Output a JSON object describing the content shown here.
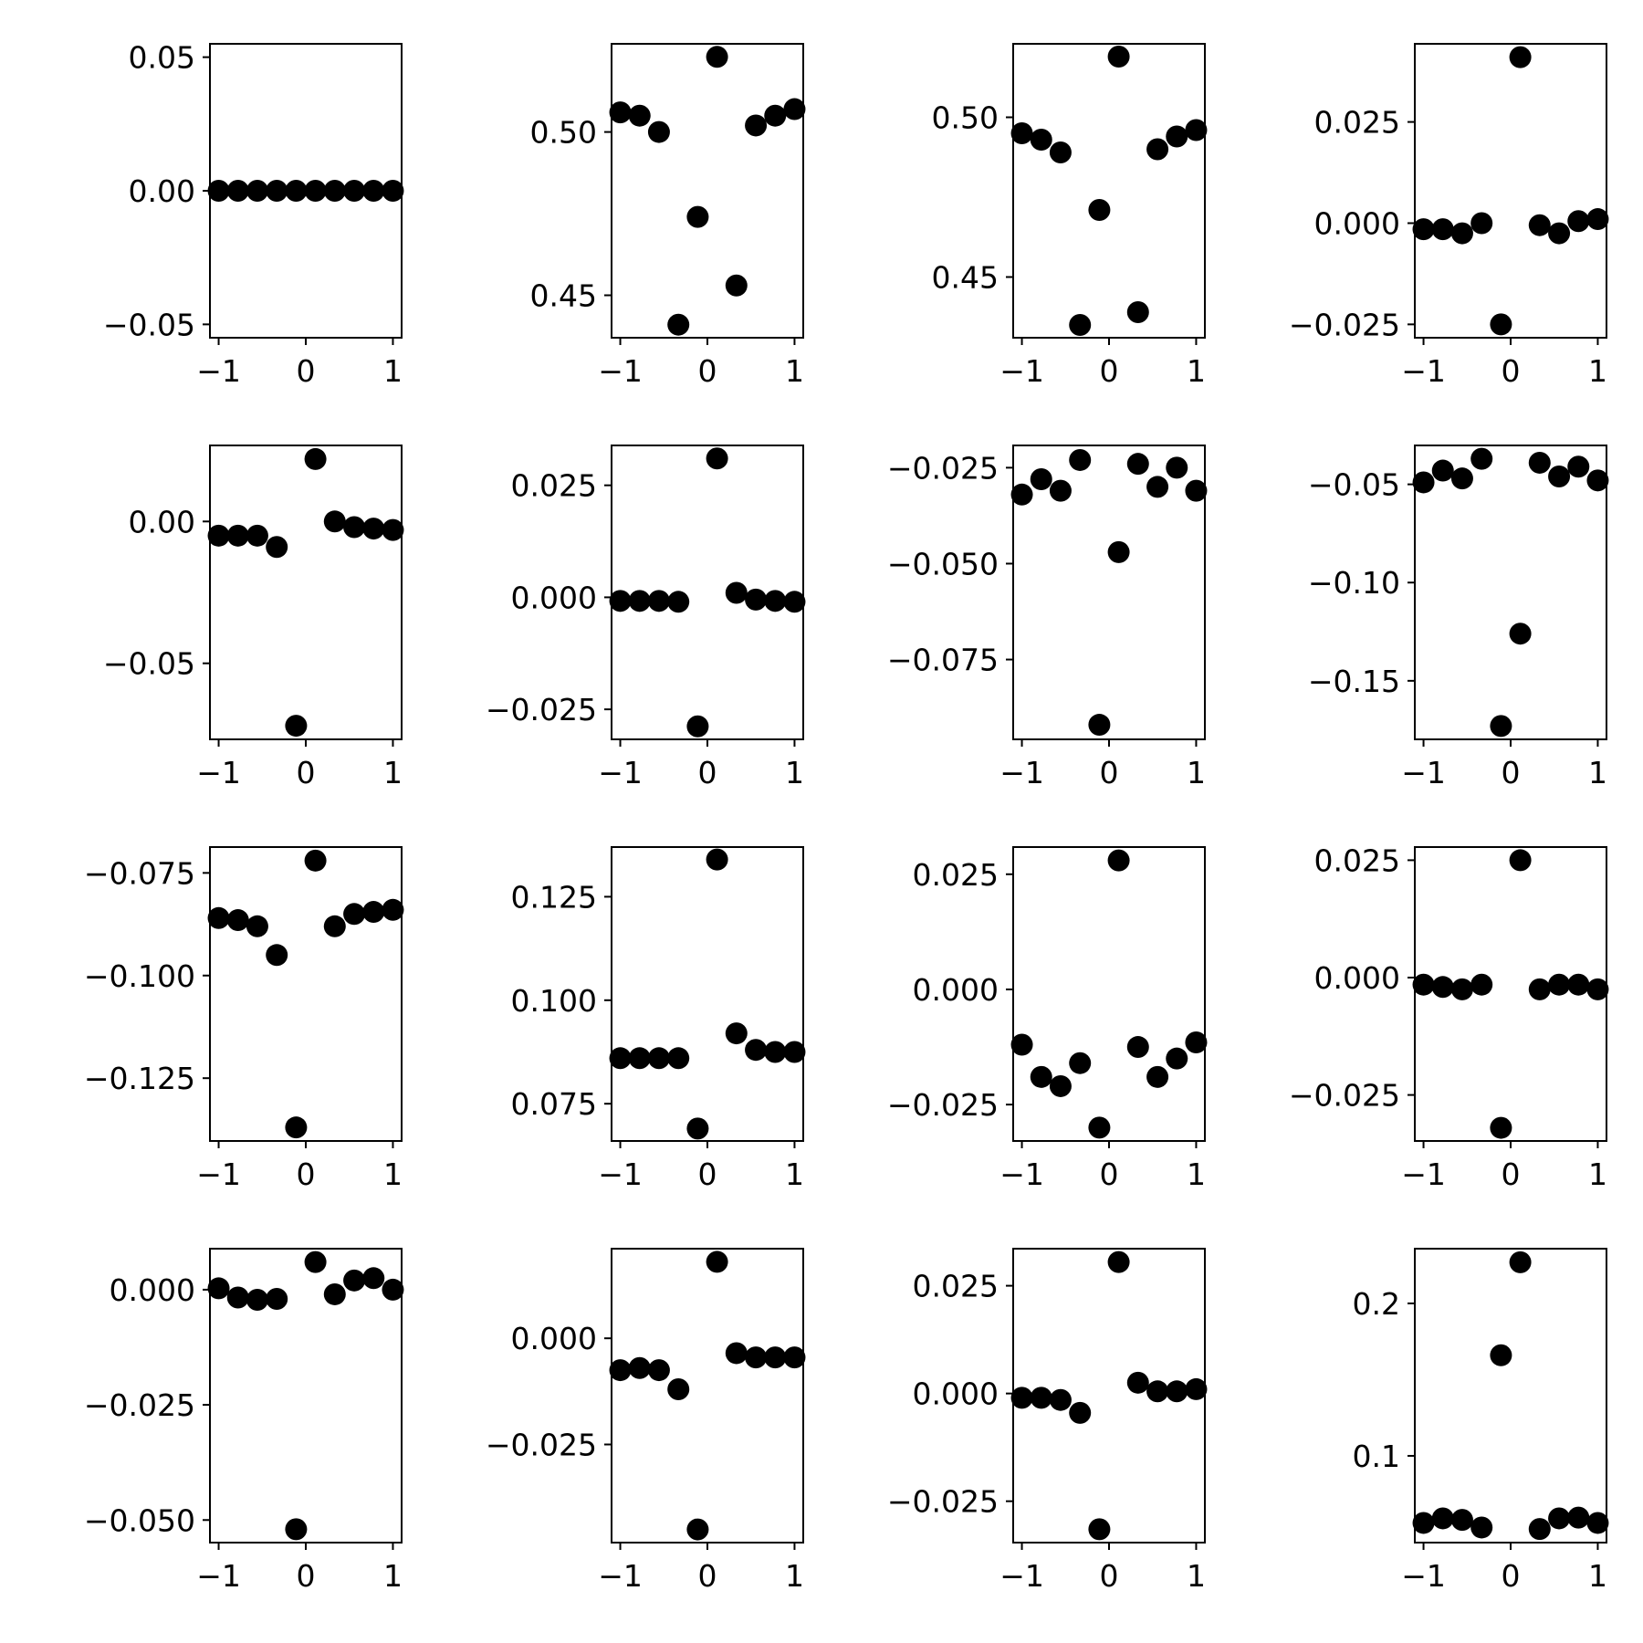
{
  "figure": {
    "background": "#ffffff",
    "grid_rows": 4,
    "grid_cols": 4,
    "marker_color": "#000000",
    "grid": false
  },
  "chart_data": [
    {
      "type": "scatter",
      "x": [
        -1.0,
        -0.778,
        -0.556,
        -0.333,
        -0.111,
        0.111,
        0.333,
        0.556,
        0.778,
        1.0
      ],
      "y": [
        0,
        0,
        0,
        0,
        0,
        0,
        0,
        0,
        0,
        0
      ],
      "xlim": [
        -1.1,
        1.1
      ],
      "ylim": [
        -0.055,
        0.055
      ],
      "xticks": [
        {
          "v": -1,
          "label": "−1"
        },
        {
          "v": 0,
          "label": "0"
        },
        {
          "v": 1,
          "label": "1"
        }
      ],
      "yticks": [
        {
          "v": 0.05,
          "label": "0.05"
        },
        {
          "v": 0,
          "label": "0.00"
        },
        {
          "v": -0.05,
          "label": "−0.05"
        }
      ]
    },
    {
      "type": "scatter",
      "x": [
        -1.0,
        -0.778,
        -0.556,
        -0.333,
        -0.111,
        0.111,
        0.333,
        0.556,
        0.778,
        1.0
      ],
      "y": [
        0.506,
        0.505,
        0.5,
        0.441,
        0.474,
        0.523,
        0.453,
        0.502,
        0.505,
        0.507
      ],
      "xlim": [
        -1.1,
        1.1
      ],
      "ylim": [
        0.437,
        0.527
      ],
      "xticks": [
        {
          "v": -1,
          "label": "−1"
        },
        {
          "v": 0,
          "label": "0"
        },
        {
          "v": 1,
          "label": "1"
        }
      ],
      "yticks": [
        {
          "v": 0.5,
          "label": "0.50"
        },
        {
          "v": 0.45,
          "label": "0.45"
        }
      ]
    },
    {
      "type": "scatter",
      "x": [
        -1.0,
        -0.778,
        -0.556,
        -0.333,
        -0.111,
        0.111,
        0.333,
        0.556,
        0.778,
        1.0
      ],
      "y": [
        0.495,
        0.493,
        0.489,
        0.435,
        0.471,
        0.519,
        0.439,
        0.49,
        0.494,
        0.496
      ],
      "xlim": [
        -1.1,
        1.1
      ],
      "ylim": [
        0.431,
        0.523
      ],
      "xticks": [
        {
          "v": -1,
          "label": "−1"
        },
        {
          "v": 0,
          "label": "0"
        },
        {
          "v": 1,
          "label": "1"
        }
      ],
      "yticks": [
        {
          "v": 0.5,
          "label": "0.50"
        },
        {
          "v": 0.45,
          "label": "0.45"
        }
      ]
    },
    {
      "type": "scatter",
      "x": [
        -1.0,
        -0.778,
        -0.556,
        -0.333,
        -0.111,
        0.111,
        0.333,
        0.556,
        0.778,
        1.0
      ],
      "y": [
        -0.0015,
        -0.0015,
        -0.0025,
        0.0,
        -0.025,
        0.041,
        -0.0005,
        -0.0025,
        0.0005,
        0.001
      ],
      "xlim": [
        -1.1,
        1.1
      ],
      "ylim": [
        -0.0283,
        0.0443
      ],
      "xticks": [
        {
          "v": -1,
          "label": "−1"
        },
        {
          "v": 0,
          "label": "0"
        },
        {
          "v": 1,
          "label": "1"
        }
      ],
      "yticks": [
        {
          "v": 0.025,
          "label": "0.025"
        },
        {
          "v": 0,
          "label": "0.000"
        },
        {
          "v": -0.025,
          "label": "−0.025"
        }
      ]
    },
    {
      "type": "scatter",
      "x": [
        -1.0,
        -0.778,
        -0.556,
        -0.333,
        -0.111,
        0.111,
        0.333,
        0.556,
        0.778,
        1.0
      ],
      "y": [
        -0.005,
        -0.005,
        -0.005,
        -0.009,
        -0.072,
        0.022,
        0.0,
        -0.002,
        -0.0025,
        -0.003
      ],
      "xlim": [
        -1.1,
        1.1
      ],
      "ylim": [
        -0.0768,
        0.0268
      ],
      "xticks": [
        {
          "v": -1,
          "label": "−1"
        },
        {
          "v": 0,
          "label": "0"
        },
        {
          "v": 1,
          "label": "1"
        }
      ],
      "yticks": [
        {
          "v": 0,
          "label": "0.00"
        },
        {
          "v": -0.05,
          "label": "−0.05"
        }
      ]
    },
    {
      "type": "scatter",
      "x": [
        -1.0,
        -0.778,
        -0.556,
        -0.333,
        -0.111,
        0.111,
        0.333,
        0.556,
        0.778,
        1.0
      ],
      "y": [
        -0.0008,
        -0.0008,
        -0.0008,
        -0.001,
        -0.0288,
        0.031,
        0.001,
        -0.0005,
        -0.0008,
        -0.001
      ],
      "xlim": [
        -1.1,
        1.1
      ],
      "ylim": [
        -0.0317,
        0.0339
      ],
      "xticks": [
        {
          "v": -1,
          "label": "−1"
        },
        {
          "v": 0,
          "label": "0"
        },
        {
          "v": 1,
          "label": "1"
        }
      ],
      "yticks": [
        {
          "v": 0.025,
          "label": "0.025"
        },
        {
          "v": 0,
          "label": "0.000"
        },
        {
          "v": -0.025,
          "label": "−0.025"
        }
      ]
    },
    {
      "type": "scatter",
      "x": [
        -1.0,
        -0.778,
        -0.556,
        -0.333,
        -0.111,
        0.111,
        0.333,
        0.556,
        0.778,
        1.0
      ],
      "y": [
        -0.032,
        -0.028,
        -0.031,
        -0.023,
        -0.092,
        -0.047,
        -0.024,
        -0.03,
        -0.025,
        -0.031
      ],
      "xlim": [
        -1.1,
        1.1
      ],
      "ylim": [
        -0.0958,
        -0.0192
      ],
      "xticks": [
        {
          "v": -1,
          "label": "−1"
        },
        {
          "v": 0,
          "label": "0"
        },
        {
          "v": 1,
          "label": "1"
        }
      ],
      "yticks": [
        {
          "v": -0.025,
          "label": "−0.025"
        },
        {
          "v": -0.05,
          "label": "−0.050"
        },
        {
          "v": -0.075,
          "label": "−0.075"
        }
      ]
    },
    {
      "type": "scatter",
      "x": [
        -1.0,
        -0.778,
        -0.556,
        -0.333,
        -0.111,
        0.111,
        0.333,
        0.556,
        0.778,
        1.0
      ],
      "y": [
        -0.049,
        -0.043,
        -0.047,
        -0.037,
        -0.173,
        -0.126,
        -0.039,
        -0.046,
        -0.041,
        -0.048
      ],
      "xlim": [
        -1.1,
        1.1
      ],
      "ylim": [
        -0.1798,
        -0.0302
      ],
      "xticks": [
        {
          "v": -1,
          "label": "−1"
        },
        {
          "v": 0,
          "label": "0"
        },
        {
          "v": 1,
          "label": "1"
        }
      ],
      "yticks": [
        {
          "v": -0.05,
          "label": "−0.05"
        },
        {
          "v": -0.1,
          "label": "−0.10"
        },
        {
          "v": -0.15,
          "label": "−0.15"
        }
      ]
    },
    {
      "type": "scatter",
      "x": [
        -1.0,
        -0.778,
        -0.556,
        -0.333,
        -0.111,
        0.111,
        0.333,
        0.556,
        0.778,
        1.0
      ],
      "y": [
        -0.086,
        -0.0865,
        -0.088,
        -0.095,
        -0.137,
        -0.072,
        -0.088,
        -0.085,
        -0.0845,
        -0.084
      ],
      "xlim": [
        -1.1,
        1.1
      ],
      "ylim": [
        -0.1403,
        -0.0687
      ],
      "xticks": [
        {
          "v": -1,
          "label": "−1"
        },
        {
          "v": 0,
          "label": "0"
        },
        {
          "v": 1,
          "label": "1"
        }
      ],
      "yticks": [
        {
          "v": -0.075,
          "label": "−0.075"
        },
        {
          "v": -0.1,
          "label": "−0.100"
        },
        {
          "v": -0.125,
          "label": "−0.125"
        }
      ]
    },
    {
      "type": "scatter",
      "x": [
        -1.0,
        -0.778,
        -0.556,
        -0.333,
        -0.111,
        0.111,
        0.333,
        0.556,
        0.778,
        1.0
      ],
      "y": [
        0.086,
        0.086,
        0.086,
        0.086,
        0.069,
        0.134,
        0.092,
        0.088,
        0.0875,
        0.0875
      ],
      "xlim": [
        -1.1,
        1.1
      ],
      "ylim": [
        0.066,
        0.137
      ],
      "xticks": [
        {
          "v": -1,
          "label": "−1"
        },
        {
          "v": 0,
          "label": "0"
        },
        {
          "v": 1,
          "label": "1"
        }
      ],
      "yticks": [
        {
          "v": 0.125,
          "label": "0.125"
        },
        {
          "v": 0.1,
          "label": "0.100"
        },
        {
          "v": 0.075,
          "label": "0.075"
        }
      ]
    },
    {
      "type": "scatter",
      "x": [
        -1.0,
        -0.778,
        -0.556,
        -0.333,
        -0.111,
        0.111,
        0.333,
        0.556,
        0.778,
        1.0
      ],
      "y": [
        -0.012,
        -0.019,
        -0.021,
        -0.016,
        -0.03,
        0.028,
        -0.0125,
        -0.019,
        -0.015,
        -0.0115
      ],
      "xlim": [
        -1.1,
        1.1
      ],
      "ylim": [
        -0.0329,
        0.0309
      ],
      "xticks": [
        {
          "v": -1,
          "label": "−1"
        },
        {
          "v": 0,
          "label": "0"
        },
        {
          "v": 1,
          "label": "1"
        }
      ],
      "yticks": [
        {
          "v": 0.025,
          "label": "0.025"
        },
        {
          "v": 0,
          "label": "0.000"
        },
        {
          "v": -0.025,
          "label": "−0.025"
        }
      ]
    },
    {
      "type": "scatter",
      "x": [
        -1.0,
        -0.778,
        -0.556,
        -0.333,
        -0.111,
        0.111,
        0.333,
        0.556,
        0.778,
        1.0
      ],
      "y": [
        -0.0015,
        -0.002,
        -0.0025,
        -0.0015,
        -0.032,
        0.025,
        -0.0025,
        -0.0015,
        -0.0015,
        -0.0025
      ],
      "xlim": [
        -1.1,
        1.1
      ],
      "ylim": [
        -0.0348,
        0.0278
      ],
      "xticks": [
        {
          "v": -1,
          "label": "−1"
        },
        {
          "v": 0,
          "label": "0"
        },
        {
          "v": 1,
          "label": "1"
        }
      ],
      "yticks": [
        {
          "v": 0.025,
          "label": "0.025"
        },
        {
          "v": 0,
          "label": "0.000"
        },
        {
          "v": -0.025,
          "label": "−0.025"
        }
      ]
    },
    {
      "type": "scatter",
      "x": [
        -1.0,
        -0.778,
        -0.556,
        -0.333,
        -0.111,
        0.111,
        0.333,
        0.556,
        0.778,
        1.0
      ],
      "y": [
        0.0003,
        -0.0017,
        -0.0022,
        -0.002,
        -0.052,
        0.006,
        -0.001,
        0.002,
        0.0025,
        0.0
      ],
      "xlim": [
        -1.1,
        1.1
      ],
      "ylim": [
        -0.0549,
        0.0089
      ],
      "xticks": [
        {
          "v": -1,
          "label": "−1"
        },
        {
          "v": 0,
          "label": "0"
        },
        {
          "v": 1,
          "label": "1"
        }
      ],
      "yticks": [
        {
          "v": 0,
          "label": "0.000"
        },
        {
          "v": -0.025,
          "label": "−0.025"
        },
        {
          "v": -0.05,
          "label": "−0.050"
        }
      ]
    },
    {
      "type": "scatter",
      "x": [
        -1.0,
        -0.778,
        -0.556,
        -0.333,
        -0.111,
        0.111,
        0.333,
        0.556,
        0.778,
        1.0
      ],
      "y": [
        -0.0075,
        -0.007,
        -0.0075,
        -0.012,
        -0.045,
        0.018,
        -0.0035,
        -0.0045,
        -0.0045,
        -0.0045
      ],
      "xlim": [
        -1.1,
        1.1
      ],
      "ylim": [
        -0.0481,
        0.0211
      ],
      "xticks": [
        {
          "v": -1,
          "label": "−1"
        },
        {
          "v": 0,
          "label": "0"
        },
        {
          "v": 1,
          "label": "1"
        }
      ],
      "yticks": [
        {
          "v": 0,
          "label": "0.000"
        },
        {
          "v": -0.025,
          "label": "−0.025"
        }
      ]
    },
    {
      "type": "scatter",
      "x": [
        -1.0,
        -0.778,
        -0.556,
        -0.333,
        -0.111,
        0.111,
        0.333,
        0.556,
        0.778,
        1.0
      ],
      "y": [
        -0.001,
        -0.001,
        -0.0015,
        -0.0045,
        -0.0315,
        0.0305,
        0.0025,
        0.0005,
        0.0005,
        0.001
      ],
      "xlim": [
        -1.1,
        1.1
      ],
      "ylim": [
        -0.0346,
        0.0336
      ],
      "xticks": [
        {
          "v": -1,
          "label": "−1"
        },
        {
          "v": 0,
          "label": "0"
        },
        {
          "v": 1,
          "label": "1"
        }
      ],
      "yticks": [
        {
          "v": 0.025,
          "label": "0.025"
        },
        {
          "v": 0,
          "label": "0.000"
        },
        {
          "v": -0.025,
          "label": "−0.025"
        }
      ]
    },
    {
      "type": "scatter",
      "x": [
        -1.0,
        -0.778,
        -0.556,
        -0.333,
        -0.111,
        0.111,
        0.333,
        0.556,
        0.778,
        1.0
      ],
      "y": [
        0.056,
        0.059,
        0.058,
        0.053,
        0.166,
        0.227,
        0.052,
        0.059,
        0.0595,
        0.056
      ],
      "xlim": [
        -1.1,
        1.1
      ],
      "ylim": [
        0.0431,
        0.2359
      ],
      "xticks": [
        {
          "v": -1,
          "label": "−1"
        },
        {
          "v": 0,
          "label": "0"
        },
        {
          "v": 1,
          "label": "1"
        }
      ],
      "yticks": [
        {
          "v": 0.2,
          "label": "0.2"
        },
        {
          "v": 0.1,
          "label": "0.1"
        }
      ]
    }
  ]
}
